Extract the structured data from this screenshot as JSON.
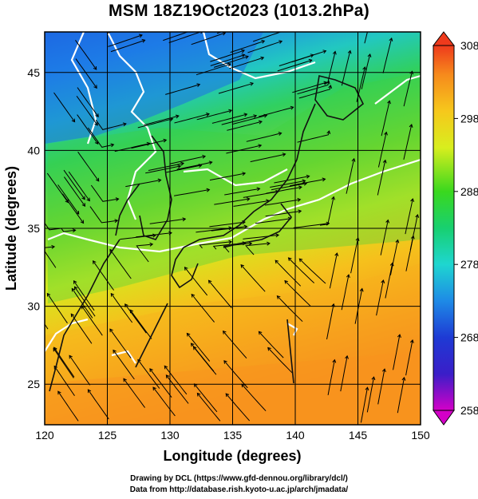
{
  "title": "MSM 18Z19Oct2023 (1013.2hPa)",
  "x_axis": {
    "label": "Longitude (degrees)",
    "range": [
      120,
      150
    ],
    "ticks": [
      "120",
      "125",
      "130",
      "135",
      "140",
      "145",
      "150"
    ]
  },
  "y_axis": {
    "label": "Latitude  (degrees)",
    "range": [
      22.4,
      47.6
    ],
    "ticks": [
      "25",
      "30",
      "35",
      "40",
      "45"
    ]
  },
  "colorbar": {
    "range": [
      258,
      308
    ],
    "ticks": [
      "308",
      "298",
      "288",
      "278",
      "268",
      "258"
    ],
    "colors": [
      "#d400c8",
      "#1e2bcc",
      "#1e7be6",
      "#1ecfe0",
      "#16d06a",
      "#1fd71f",
      "#d8ee1e",
      "#f6c81c",
      "#f8901e",
      "#ee3a1c"
    ]
  },
  "field_colors": {
    "north": "#1e70e6",
    "central": "#3ed23e",
    "south": "#f6b01e",
    "coast": "#111111",
    "contour": "#ffffff",
    "streamline": "#000000"
  },
  "credits": {
    "line1": "Drawing by DCL (https://www.gfd-dennou.org/library/dcl/)",
    "line2": "Data from http://database.rish.kyoto-u.ac.jp/arch/jmadata/"
  }
}
